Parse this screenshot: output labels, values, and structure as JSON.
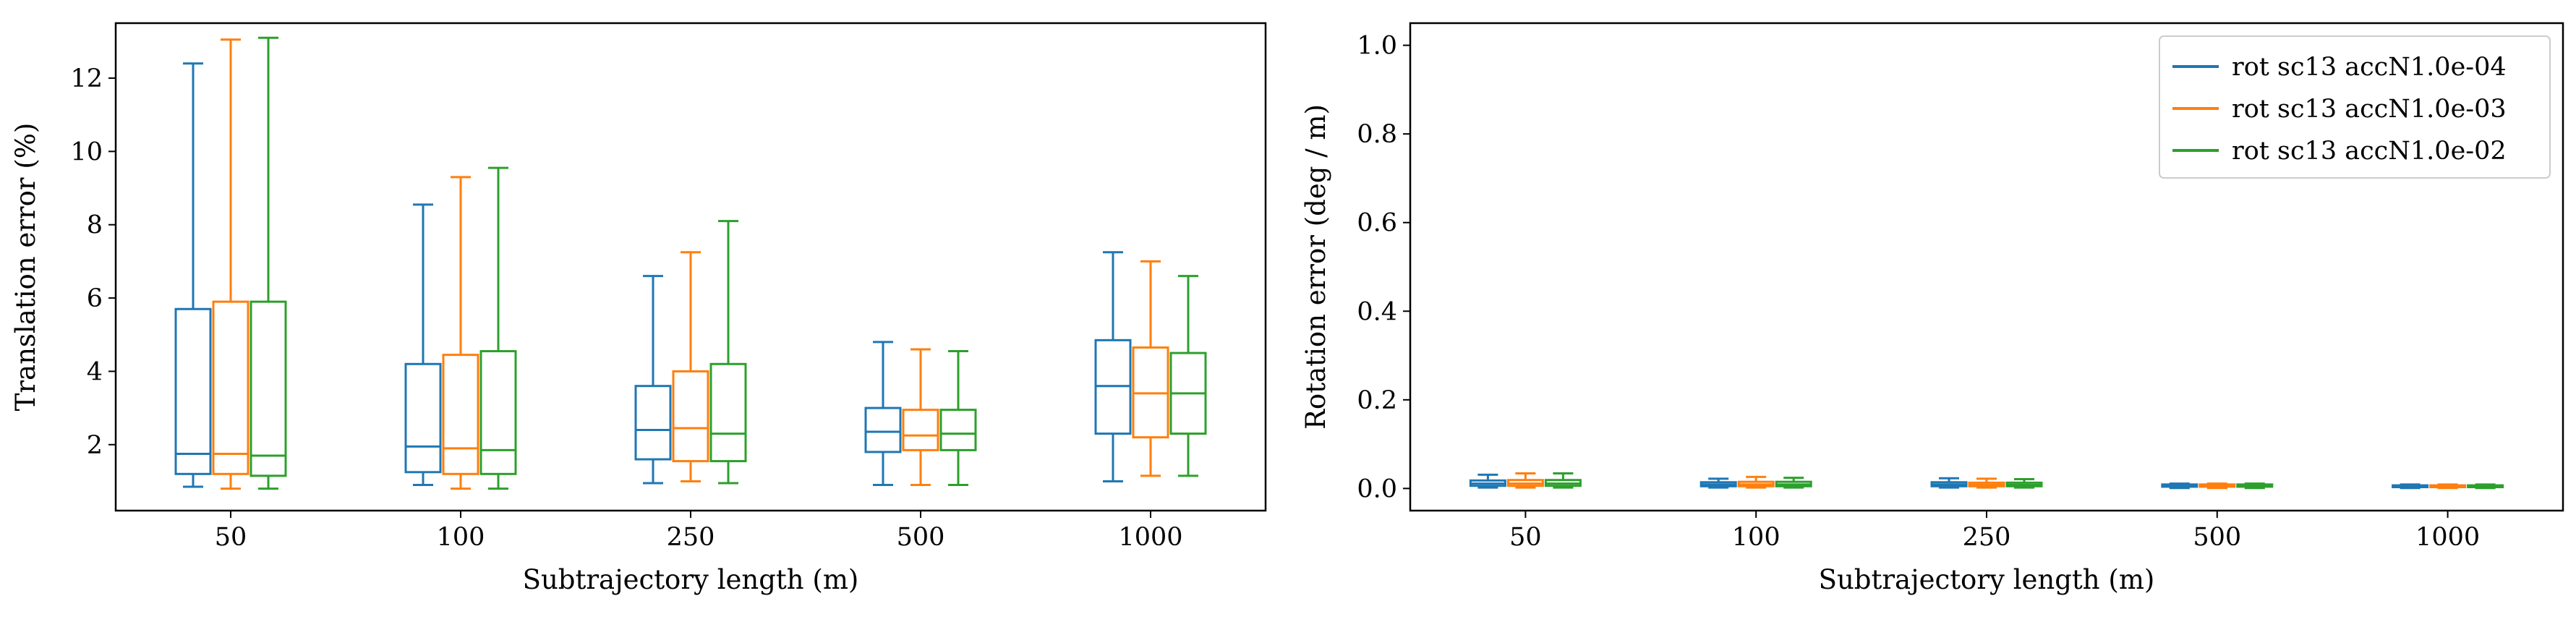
{
  "colors": {
    "series": [
      "#1f77b4",
      "#ff7f0e",
      "#2ca02c"
    ],
    "axis": "#000000",
    "legend_frame": "#cccccc"
  },
  "chart_data": [
    {
      "type": "box",
      "title": "",
      "xlabel": "Subtrajectory length (m)",
      "ylabel": "Translation error (%)",
      "categories": [
        "50",
        "100",
        "250",
        "500",
        "1000"
      ],
      "ylim": [
        0.2,
        13.5
      ],
      "yticks": [
        2,
        4,
        6,
        8,
        10,
        12
      ],
      "grid": false,
      "legend": null,
      "series": [
        {
          "name": "rot sc13 accN1.0e-04",
          "boxes": [
            {
              "whislo": 0.85,
              "q1": 1.2,
              "med": 1.75,
              "q3": 5.7,
              "whishi": 12.4
            },
            {
              "whislo": 0.9,
              "q1": 1.25,
              "med": 1.95,
              "q3": 4.2,
              "whishi": 8.55
            },
            {
              "whislo": 0.95,
              "q1": 1.6,
              "med": 2.4,
              "q3": 3.6,
              "whishi": 6.6
            },
            {
              "whislo": 0.9,
              "q1": 1.8,
              "med": 2.35,
              "q3": 3.0,
              "whishi": 4.8
            },
            {
              "whislo": 1.0,
              "q1": 2.3,
              "med": 3.6,
              "q3": 4.85,
              "whishi": 7.25
            }
          ]
        },
        {
          "name": "rot sc13 accN1.0e-03",
          "boxes": [
            {
              "whislo": 0.8,
              "q1": 1.2,
              "med": 1.75,
              "q3": 5.9,
              "whishi": 13.05
            },
            {
              "whislo": 0.8,
              "q1": 1.2,
              "med": 1.9,
              "q3": 4.45,
              "whishi": 9.3
            },
            {
              "whislo": 1.0,
              "q1": 1.55,
              "med": 2.45,
              "q3": 4.0,
              "whishi": 7.25
            },
            {
              "whislo": 0.9,
              "q1": 1.85,
              "med": 2.25,
              "q3": 2.95,
              "whishi": 4.6
            },
            {
              "whislo": 1.15,
              "q1": 2.2,
              "med": 3.4,
              "q3": 4.65,
              "whishi": 7.0
            }
          ]
        },
        {
          "name": "rot sc13 accN1.0e-02",
          "boxes": [
            {
              "whislo": 0.8,
              "q1": 1.15,
              "med": 1.7,
              "q3": 5.9,
              "whishi": 13.1
            },
            {
              "whislo": 0.8,
              "q1": 1.2,
              "med": 1.85,
              "q3": 4.55,
              "whishi": 9.55
            },
            {
              "whislo": 0.95,
              "q1": 1.55,
              "med": 2.3,
              "q3": 4.2,
              "whishi": 8.1
            },
            {
              "whislo": 0.9,
              "q1": 1.85,
              "med": 2.3,
              "q3": 2.95,
              "whishi": 4.55
            },
            {
              "whislo": 1.15,
              "q1": 2.3,
              "med": 3.4,
              "q3": 4.5,
              "whishi": 6.6
            }
          ]
        }
      ]
    },
    {
      "type": "box",
      "title": "",
      "xlabel": "Subtrajectory length (m)",
      "ylabel": "Rotation error (deg / m)",
      "categories": [
        "50",
        "100",
        "250",
        "500",
        "1000"
      ],
      "ylim": [
        -0.05,
        1.05
      ],
      "yticks": [
        0.0,
        0.2,
        0.4,
        0.6,
        0.8,
        1.0
      ],
      "ytick_labels": [
        "0.0",
        "0.2",
        "0.4",
        "0.6",
        "0.8",
        "1.0"
      ],
      "grid": false,
      "legend": "top-right",
      "series": [
        {
          "name": "rot sc13 accN1.0e-04",
          "boxes": [
            {
              "whislo": 0.002,
              "q1": 0.006,
              "med": 0.011,
              "q3": 0.018,
              "whishi": 0.031
            },
            {
              "whislo": 0.002,
              "q1": 0.005,
              "med": 0.009,
              "q3": 0.014,
              "whishi": 0.022
            },
            {
              "whislo": 0.002,
              "q1": 0.005,
              "med": 0.009,
              "q3": 0.014,
              "whishi": 0.023
            },
            {
              "whislo": 0.001,
              "q1": 0.004,
              "med": 0.006,
              "q3": 0.009,
              "whishi": 0.011
            },
            {
              "whislo": 0.001,
              "q1": 0.003,
              "med": 0.005,
              "q3": 0.007,
              "whishi": 0.009
            }
          ]
        },
        {
          "name": "rot sc13 accN1.0e-03",
          "boxes": [
            {
              "whislo": 0.002,
              "q1": 0.006,
              "med": 0.011,
              "q3": 0.019,
              "whishi": 0.034
            },
            {
              "whislo": 0.002,
              "q1": 0.005,
              "med": 0.009,
              "q3": 0.015,
              "whishi": 0.026
            },
            {
              "whislo": 0.002,
              "q1": 0.005,
              "med": 0.008,
              "q3": 0.013,
              "whishi": 0.022
            },
            {
              "whislo": 0.001,
              "q1": 0.004,
              "med": 0.006,
              "q3": 0.009,
              "whishi": 0.011
            },
            {
              "whislo": 0.001,
              "q1": 0.003,
              "med": 0.005,
              "q3": 0.007,
              "whishi": 0.009
            }
          ]
        },
        {
          "name": "rot sc13 accN1.0e-02",
          "boxes": [
            {
              "whislo": 0.002,
              "q1": 0.006,
              "med": 0.011,
              "q3": 0.019,
              "whishi": 0.034
            },
            {
              "whislo": 0.002,
              "q1": 0.005,
              "med": 0.009,
              "q3": 0.015,
              "whishi": 0.024
            },
            {
              "whislo": 0.002,
              "q1": 0.005,
              "med": 0.008,
              "q3": 0.013,
              "whishi": 0.021
            },
            {
              "whislo": 0.001,
              "q1": 0.004,
              "med": 0.006,
              "q3": 0.009,
              "whishi": 0.011
            },
            {
              "whislo": 0.001,
              "q1": 0.003,
              "med": 0.005,
              "q3": 0.007,
              "whishi": 0.009
            }
          ]
        }
      ]
    }
  ]
}
